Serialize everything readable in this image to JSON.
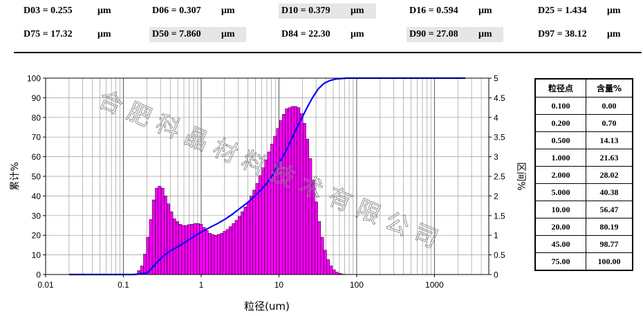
{
  "stats": [
    {
      "label": "D03 = 0.255",
      "unit": "μm",
      "highlight": false
    },
    {
      "label": "D06 = 0.307",
      "unit": "μm",
      "highlight": false
    },
    {
      "label": "D10 = 0.379",
      "unit": "μm",
      "highlight": true
    },
    {
      "label": "D16 = 0.594",
      "unit": "μm",
      "highlight": false
    },
    {
      "label": "D25 = 1.434",
      "unit": "μm",
      "highlight": false
    },
    {
      "label": "D75 = 17.32",
      "unit": "μm",
      "highlight": false
    },
    {
      "label": "D50 = 7.860",
      "unit": "μm",
      "highlight": true
    },
    {
      "label": "D84 = 22.30",
      "unit": "μm",
      "highlight": false
    },
    {
      "label": "D90 = 27.08",
      "unit": "μm",
      "highlight": true
    },
    {
      "label": "D97 = 38.12",
      "unit": "μm",
      "highlight": false
    }
  ],
  "watermark": "合肥科晶材料技术有限公司",
  "chart_data": {
    "type": "bar",
    "xlabel": "粒径(um)",
    "ylabel_left": "累计%",
    "ylabel_right": "区间%",
    "x_scale": "log",
    "xlim": [
      0.01,
      5000
    ],
    "xticks": [
      "0.01",
      "0.1",
      "1",
      "10",
      "100",
      "1000"
    ],
    "ylim_left": [
      0,
      100
    ],
    "yticks_left": [
      "0",
      "10",
      "20",
      "30",
      "40",
      "50",
      "60",
      "70",
      "80",
      "90",
      "100"
    ],
    "ylim_right": [
      0,
      5
    ],
    "yticks_right": [
      "0",
      "0.5",
      "1",
      "1.5",
      "2",
      "2.5",
      "3",
      "3.5",
      "4",
      "4.5",
      "5"
    ],
    "grid": true,
    "bar_color": "#ff00ff",
    "line_color": "#0000ff",
    "series": [
      {
        "name": "区间%",
        "axis": "right",
        "values": [
          {
            "x": 0.145,
            "y": 0.02
          },
          {
            "x": 0.158,
            "y": 0.1
          },
          {
            "x": 0.173,
            "y": 0.22
          },
          {
            "x": 0.189,
            "y": 0.52
          },
          {
            "x": 0.206,
            "y": 0.95
          },
          {
            "x": 0.225,
            "y": 1.4
          },
          {
            "x": 0.245,
            "y": 1.9
          },
          {
            "x": 0.268,
            "y": 2.2
          },
          {
            "x": 0.292,
            "y": 2.25
          },
          {
            "x": 0.319,
            "y": 2.2
          },
          {
            "x": 0.348,
            "y": 2.0
          },
          {
            "x": 0.38,
            "y": 1.8
          },
          {
            "x": 0.415,
            "y": 1.6
          },
          {
            "x": 0.453,
            "y": 1.42
          },
          {
            "x": 0.494,
            "y": 1.35
          },
          {
            "x": 0.539,
            "y": 1.28
          },
          {
            "x": 0.589,
            "y": 1.25
          },
          {
            "x": 0.642,
            "y": 1.25
          },
          {
            "x": 0.701,
            "y": 1.27
          },
          {
            "x": 0.765,
            "y": 1.28
          },
          {
            "x": 0.835,
            "y": 1.3
          },
          {
            "x": 0.911,
            "y": 1.3
          },
          {
            "x": 0.995,
            "y": 1.28
          },
          {
            "x": 1.086,
            "y": 1.2
          },
          {
            "x": 1.185,
            "y": 1.12
          },
          {
            "x": 1.293,
            "y": 1.05
          },
          {
            "x": 1.411,
            "y": 1.02
          },
          {
            "x": 1.541,
            "y": 1.0
          },
          {
            "x": 1.681,
            "y": 1.02
          },
          {
            "x": 1.835,
            "y": 1.05
          },
          {
            "x": 2.003,
            "y": 1.1
          },
          {
            "x": 2.186,
            "y": 1.15
          },
          {
            "x": 2.386,
            "y": 1.22
          },
          {
            "x": 2.605,
            "y": 1.3
          },
          {
            "x": 2.843,
            "y": 1.38
          },
          {
            "x": 3.103,
            "y": 1.48
          },
          {
            "x": 3.387,
            "y": 1.6
          },
          {
            "x": 3.697,
            "y": 1.72
          },
          {
            "x": 4.036,
            "y": 1.85
          },
          {
            "x": 4.405,
            "y": 2.0
          },
          {
            "x": 4.808,
            "y": 2.15
          },
          {
            "x": 5.248,
            "y": 2.32
          },
          {
            "x": 5.728,
            "y": 2.52
          },
          {
            "x": 6.252,
            "y": 2.72
          },
          {
            "x": 6.824,
            "y": 2.92
          },
          {
            "x": 7.448,
            "y": 3.12
          },
          {
            "x": 8.13,
            "y": 3.32
          },
          {
            "x": 8.874,
            "y": 3.52
          },
          {
            "x": 9.686,
            "y": 3.72
          },
          {
            "x": 10.572,
            "y": 3.92
          },
          {
            "x": 11.54,
            "y": 4.08
          },
          {
            "x": 12.595,
            "y": 4.22
          },
          {
            "x": 13.748,
            "y": 4.25
          },
          {
            "x": 15.006,
            "y": 4.28
          },
          {
            "x": 16.379,
            "y": 4.28
          },
          {
            "x": 17.878,
            "y": 4.25
          },
          {
            "x": 19.514,
            "y": 4.1
          },
          {
            "x": 21.299,
            "y": 3.85
          },
          {
            "x": 23.248,
            "y": 3.45
          },
          {
            "x": 25.376,
            "y": 2.95
          },
          {
            "x": 27.698,
            "y": 2.4
          },
          {
            "x": 30.232,
            "y": 1.85
          },
          {
            "x": 32.999,
            "y": 1.35
          },
          {
            "x": 36.018,
            "y": 0.95
          },
          {
            "x": 39.314,
            "y": 0.62
          },
          {
            "x": 42.912,
            "y": 0.38
          },
          {
            "x": 46.838,
            "y": 0.22
          },
          {
            "x": 51.124,
            "y": 0.12
          },
          {
            "x": 55.802,
            "y": 0.06
          },
          {
            "x": 60.908,
            "y": 0.03
          },
          {
            "x": 66.482,
            "y": 0.01
          }
        ]
      },
      {
        "name": "累计%",
        "axis": "left",
        "values": [
          {
            "x": 0.02,
            "y": 0
          },
          {
            "x": 0.14,
            "y": 0
          },
          {
            "x": 0.16,
            "y": 0.3
          },
          {
            "x": 0.18,
            "y": 0.6
          },
          {
            "x": 0.2,
            "y": 0.7
          },
          {
            "x": 0.23,
            "y": 3
          },
          {
            "x": 0.26,
            "y": 5.5
          },
          {
            "x": 0.3,
            "y": 8
          },
          {
            "x": 0.34,
            "y": 10
          },
          {
            "x": 0.4,
            "y": 12
          },
          {
            "x": 0.5,
            "y": 14.13
          },
          {
            "x": 0.6,
            "y": 16
          },
          {
            "x": 0.75,
            "y": 18.5
          },
          {
            "x": 1.0,
            "y": 21.63
          },
          {
            "x": 1.3,
            "y": 24
          },
          {
            "x": 1.6,
            "y": 25.8
          },
          {
            "x": 2.0,
            "y": 28.02
          },
          {
            "x": 2.5,
            "y": 30.6
          },
          {
            "x": 3.0,
            "y": 33
          },
          {
            "x": 4.0,
            "y": 36.8
          },
          {
            "x": 5.0,
            "y": 40.38
          },
          {
            "x": 6.0,
            "y": 43.5
          },
          {
            "x": 7.0,
            "y": 46.5
          },
          {
            "x": 8.0,
            "y": 49.6
          },
          {
            "x": 10.0,
            "y": 56.47
          },
          {
            "x": 12.0,
            "y": 62
          },
          {
            "x": 14.0,
            "y": 67.5
          },
          {
            "x": 17.0,
            "y": 74.8
          },
          {
            "x": 20.0,
            "y": 80.19
          },
          {
            "x": 23.0,
            "y": 85
          },
          {
            "x": 27.0,
            "y": 90
          },
          {
            "x": 32.0,
            "y": 94.5
          },
          {
            "x": 38.0,
            "y": 97.3
          },
          {
            "x": 45.0,
            "y": 98.77
          },
          {
            "x": 55.0,
            "y": 99.6
          },
          {
            "x": 75.0,
            "y": 100
          },
          {
            "x": 2500,
            "y": 100
          }
        ]
      }
    ]
  },
  "table": {
    "headers": [
      "粒径点",
      "含量%"
    ],
    "rows": [
      [
        "0.100",
        "0.00"
      ],
      [
        "0.200",
        "0.70"
      ],
      [
        "0.500",
        "14.13"
      ],
      [
        "1.000",
        "21.63"
      ],
      [
        "2.000",
        "28.02"
      ],
      [
        "5.000",
        "40.38"
      ],
      [
        "10.00",
        "56.47"
      ],
      [
        "20.00",
        "80.19"
      ],
      [
        "45.00",
        "98.77"
      ],
      [
        "75.00",
        "100.00"
      ]
    ]
  }
}
